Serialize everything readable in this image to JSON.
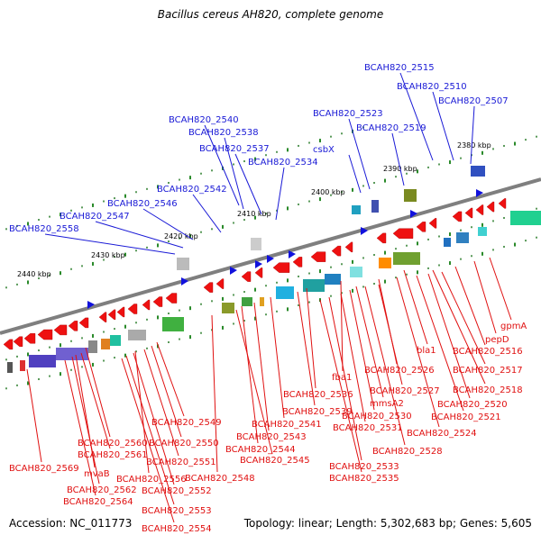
{
  "title": "Bacillus cereus AH820, complete genome",
  "footer": {
    "accession_label": "Accession:",
    "accession": "NC_011773",
    "topology_label": "Topology:",
    "topology": "linear",
    "length_label": "Length:",
    "length": "5,302,683 bp",
    "genes_label": "Genes:",
    "genes": "5,605"
  },
  "colors": {
    "backbone": "#7f7f7f",
    "forward_gene_label": "#1a1ad6",
    "reverse_gene_label": "#e01010",
    "tick_dots": "#2a8a2a"
  },
  "kbp_ticks": [
    "2380 kbp",
    "2390 kbp",
    "2400 kbp",
    "2410 kbp",
    "2420 kbp",
    "2430 kbp",
    "2440 kbp"
  ],
  "forward_labels": [
    "BCAH820_2515",
    "BCAH820_2510",
    "BCAH820_2507",
    "BCAH820_2523",
    "BCAH820_2519",
    "BCAH820_2540",
    "BCAH820_2538",
    "BCAH820_2537",
    "csbX",
    "BCAH820_2534",
    "BCAH820_2542",
    "BCAH820_2546",
    "BCAH820_2547",
    "BCAH820_2558"
  ],
  "reverse_labels": [
    "gpmA",
    "pepD",
    "BCAH820_2516",
    "bla1",
    "BCAH820_2517",
    "BCAH820_2526",
    "BCAH820_2518",
    "fba1",
    "BCAH820_2527",
    "BCAH820_2536",
    "BCAH820_2520",
    "mmsA2",
    "BCAH820_2539",
    "BCAH820_2530",
    "BCAH820_2521",
    "BCAH820_2541",
    "BCAH820_2531",
    "BCAH820_2549",
    "BCAH820_2524",
    "BCAH820_2543",
    "BCAH820_2560",
    "BCAH820_2550",
    "BCAH820_2528",
    "BCAH820_2544",
    "BCAH820_2561",
    "BCAH820_2545",
    "BCAH820_2569",
    "BCAH820_2551",
    "BCAH820_2533",
    "mvaB",
    "BCAH820_2548",
    "BCAH820_2535",
    "BCAH820_2556",
    "BCAH820_2562",
    "BCAH820_2552",
    "BCAH820_2564",
    "BCAH820_2553",
    "BCAH820_2554"
  ]
}
